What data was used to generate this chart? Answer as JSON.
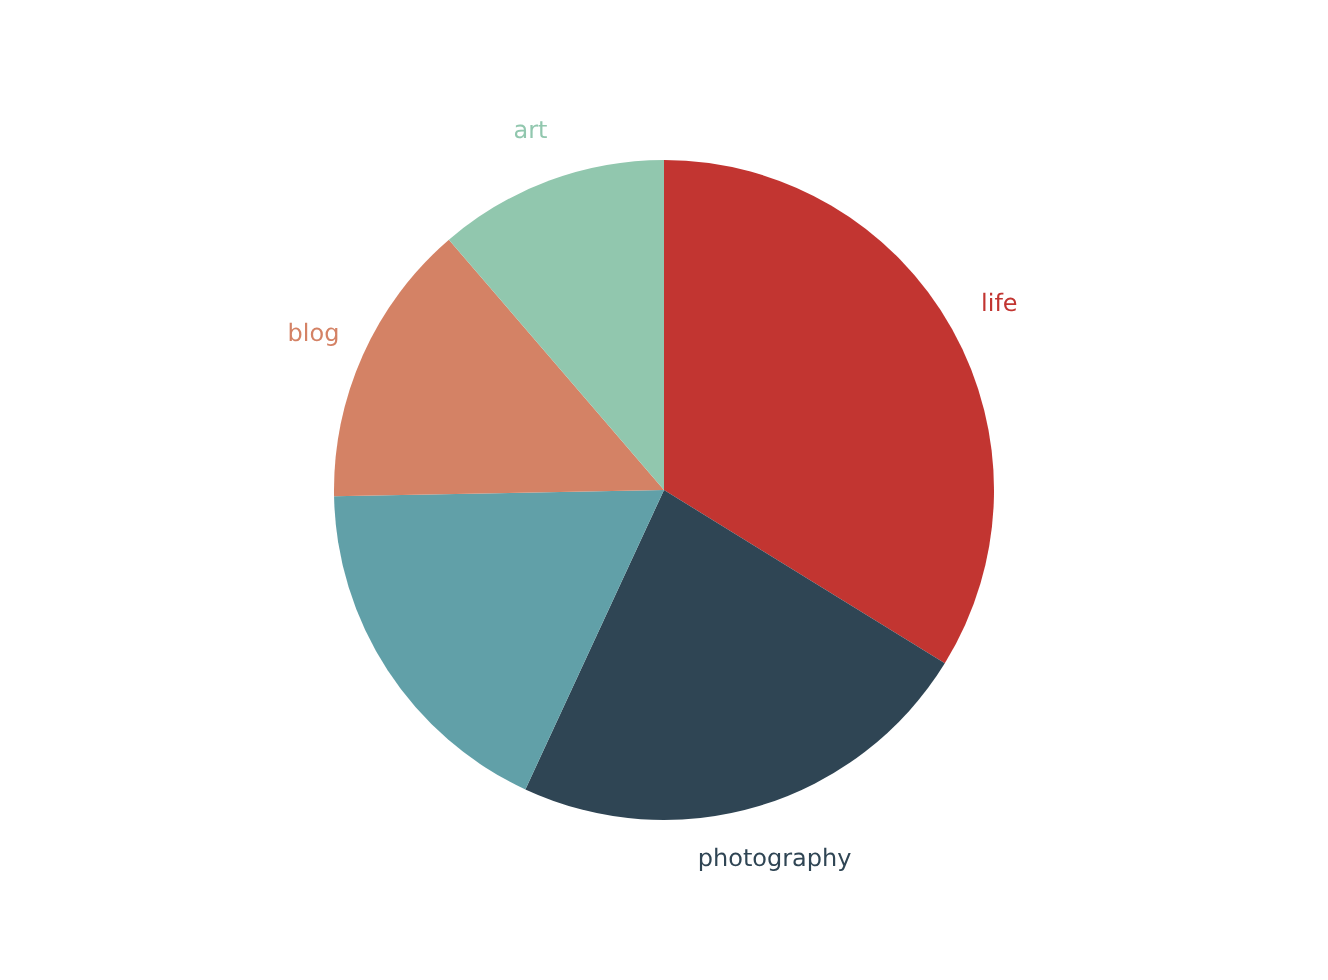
{
  "chart_data": {
    "type": "pie",
    "categories": [
      "life",
      "photography",
      null,
      "blog",
      "art"
    ],
    "values": [
      33.8,
      23.1,
      17.8,
      14.0,
      11.3
    ],
    "colors": [
      "#c23531",
      "#2f4554",
      "#61a0a8",
      "#d48265",
      "#91c7ae"
    ]
  }
}
